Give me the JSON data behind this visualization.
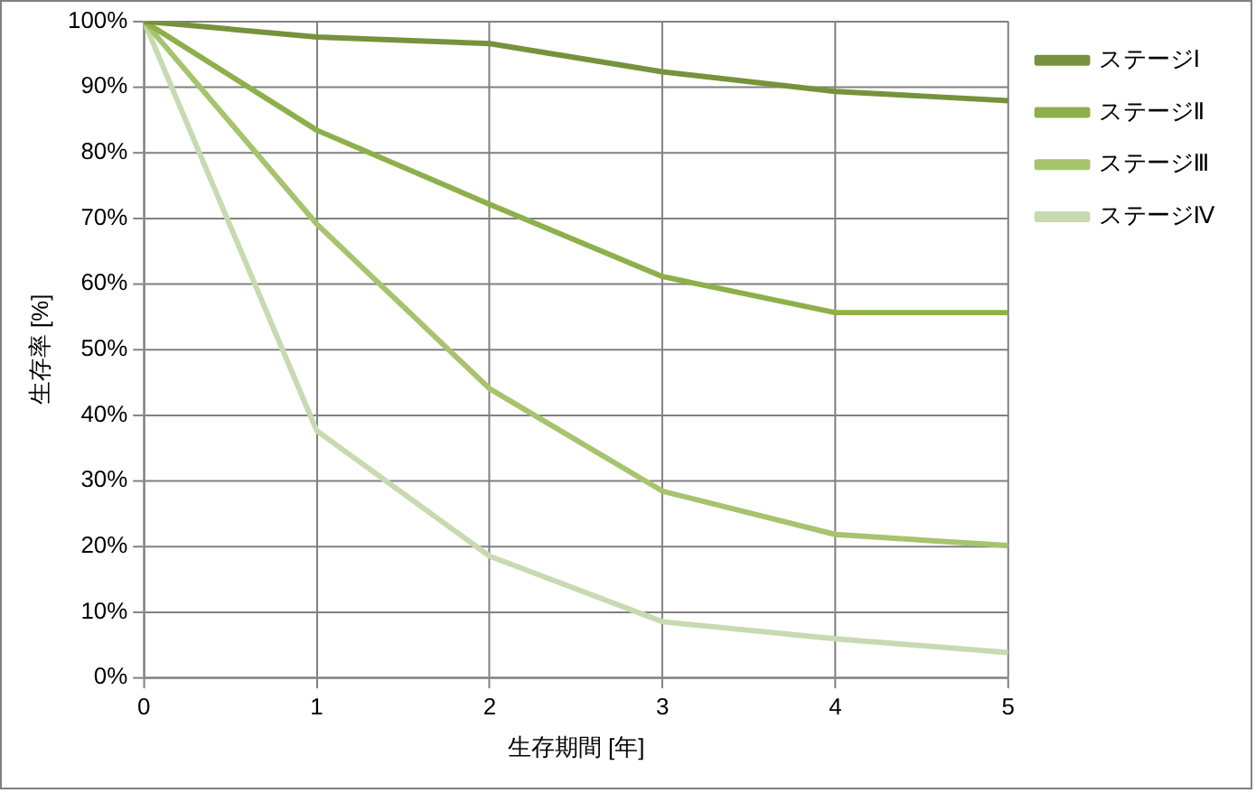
{
  "chart_data": {
    "type": "line",
    "xlabel": "生存期間 [年]",
    "ylabel": "生存率 [%]",
    "x": [
      0,
      1,
      2,
      3,
      4,
      5
    ],
    "series": [
      {
        "name": "ステージⅠ",
        "color": "#76923c",
        "values": [
          100,
          97.6,
          96.6,
          92.3,
          89.3,
          87.9
        ]
      },
      {
        "name": "ステージⅡ",
        "color": "#8db04a",
        "values": [
          100,
          83.4,
          72.1,
          61.1,
          55.6,
          55.6
        ]
      },
      {
        "name": "ステージⅢ",
        "color": "#a6c46e",
        "values": [
          100,
          69.1,
          44.0,
          28.4,
          21.8,
          20.1
        ]
      },
      {
        "name": "ステージⅣ",
        "color": "#c8dab0",
        "values": [
          100,
          37.6,
          18.5,
          8.5,
          5.9,
          3.8
        ]
      }
    ],
    "xlim": [
      0,
      5
    ],
    "xticks": [
      0,
      1,
      2,
      3,
      4,
      5
    ],
    "ylim": [
      0,
      100
    ],
    "yticks": [
      {
        "value": 0,
        "label": "0%"
      },
      {
        "value": 10,
        "label": "10%"
      },
      {
        "value": 20,
        "label": "20%"
      },
      {
        "value": 30,
        "label": "30%"
      },
      {
        "value": 40,
        "label": "40%"
      },
      {
        "value": 50,
        "label": "50%"
      },
      {
        "value": 60,
        "label": "60%"
      },
      {
        "value": 70,
        "label": "70%"
      },
      {
        "value": 80,
        "label": "80%"
      },
      {
        "value": 90,
        "label": "90%"
      },
      {
        "value": 100,
        "label": "100%"
      }
    ],
    "grid": true,
    "legend": "top right",
    "marker": "none",
    "line_style": "solid"
  }
}
